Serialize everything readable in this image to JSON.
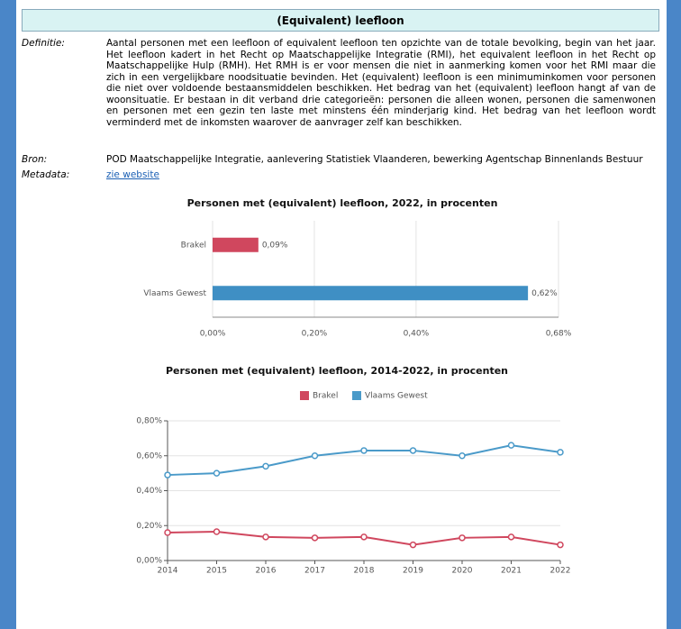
{
  "header": {
    "title": "(Equivalent) leefloon"
  },
  "meta": [
    {
      "label": "Definitie:",
      "text": "Aantal personen met een leefloon of equivalent leefloon ten opzichte van de totale bevolking, begin van het jaar. Het leefloon kadert in het Recht op Maatschappelijke Integratie (RMI), het equivalent leefloon in het Recht op Maatschappelijke Hulp (RMH). Het RMH is er voor mensen die niet in aanmerking komen voor het RMI maar die zich in een vergelijkbare noodsituatie bevinden. Het (equivalent) leefloon is een minimuminkomen voor personen die niet over voldoende bestaansmiddelen beschikken. Het bedrag van het (equivalent) leefloon hangt af van de woonsituatie. Er bestaan in dit verband drie categorieën: personen die alleen wonen, personen die samenwonen en personen met een gezin ten laste met minstens één minderjarig kind. Het bedrag van het leefloon wordt verminderd met de inkomsten waarover de aanvrager zelf kan beschikken."
    },
    {
      "label": "Bron:",
      "text": "POD Maatschappelijke Integratie, aanlevering Statistiek Vlaanderen, bewerking Agentschap Binnenlands Bestuur"
    },
    {
      "label": "Metadata:",
      "link": "zie website"
    }
  ],
  "chart_data": [
    {
      "type": "hbar",
      "title": "Personen met (equivalent) leefloon, 2022, in procenten",
      "categories": [
        "Brakel",
        "Vlaams Gewest"
      ],
      "values": [
        0.09,
        0.62
      ],
      "value_labels": [
        "0,09%",
        "0,62%"
      ],
      "colors": [
        "#d0475e",
        "#3f8fc4"
      ],
      "xlim": [
        0,
        0.68
      ],
      "xticks": [
        {
          "value": 0,
          "label": "0,00%"
        },
        {
          "value": 0.2,
          "label": "0,20%"
        },
        {
          "value": 0.4,
          "label": "0,40%"
        },
        {
          "value": 0.68,
          "label": "0,68%"
        }
      ],
      "grid": true
    },
    {
      "type": "line",
      "title": "Personen met (equivalent) leefloon, 2014-2022, in procenten",
      "categories": [
        "2014",
        "2015",
        "2016",
        "2017",
        "2018",
        "2019",
        "2020",
        "2021",
        "2022"
      ],
      "series": [
        {
          "name": "Brakel",
          "color": "#d0475e",
          "values": [
            0.16,
            0.165,
            0.135,
            0.13,
            0.135,
            0.09,
            0.13,
            0.135,
            0.09
          ]
        },
        {
          "name": "Vlaams Gewest",
          "color": "#4a9ac9",
          "values": [
            0.49,
            0.5,
            0.54,
            0.6,
            0.63,
            0.63,
            0.6,
            0.66,
            0.62
          ]
        }
      ],
      "ylim": [
        0,
        0.8
      ],
      "yticks": [
        {
          "value": 0,
          "label": "0,00%"
        },
        {
          "value": 0.2,
          "label": "0,20%"
        },
        {
          "value": 0.4,
          "label": "0,40%"
        },
        {
          "value": 0.6,
          "label": "0,60%"
        },
        {
          "value": 0.8,
          "label": "0,80%"
        }
      ],
      "grid": true,
      "legend": "top"
    }
  ]
}
